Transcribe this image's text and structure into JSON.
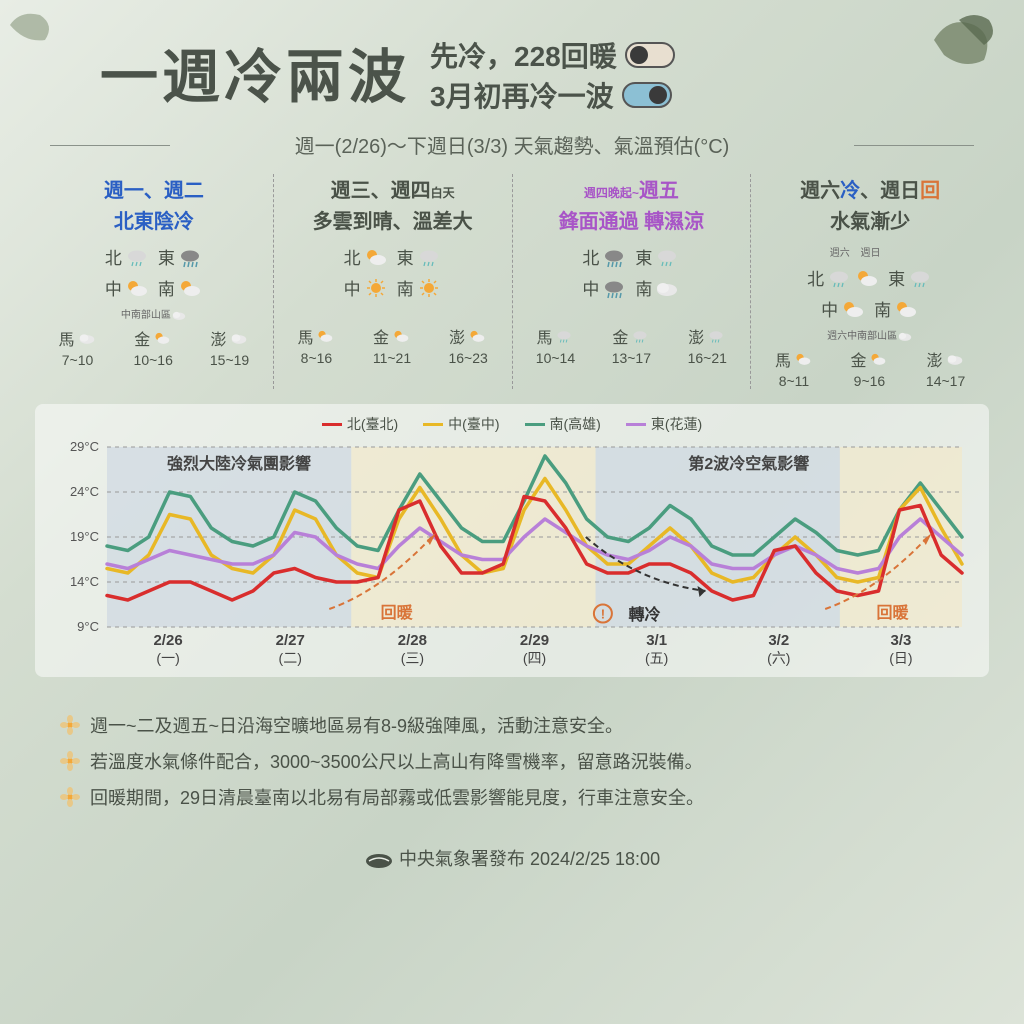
{
  "header": {
    "title_main": "一週冷兩波",
    "sub1": "先冷，228回暖",
    "sub2": "3月初再冷一波"
  },
  "subtitle": "週一(2/26)～下週日(3/3) 天氣趨勢、氣溫預估(°C)",
  "colors": {
    "blue": "#2a5fc4",
    "purple": "#a855c7",
    "orange": "#d97438",
    "dark": "#4a5248",
    "red": "#d92d2d",
    "yellow": "#e8b826",
    "green": "#4a9d7f",
    "violet": "#b880d8"
  },
  "periods": [
    {
      "title_html": "週一、週二",
      "title_color": "#2a5fc4",
      "subtitle": "北東陰冷",
      "subtitle_color": "#2a5fc4",
      "regions": [
        {
          "label": "北",
          "icon": "rain"
        },
        {
          "label": "東",
          "icon": "heavyrain"
        },
        {
          "label": "中",
          "icon": "partsun"
        },
        {
          "label": "南",
          "icon": "partsun"
        }
      ],
      "note": "中南部山區",
      "note_icon": "cloud",
      "islands": [
        {
          "name": "馬",
          "icon": "cloud",
          "temp": "7~10"
        },
        {
          "name": "金",
          "icon": "partsun",
          "temp": "10~16"
        },
        {
          "name": "澎",
          "icon": "cloud",
          "temp": "15~19"
        }
      ]
    },
    {
      "title_html": "週三、週四",
      "title_suffix": "白天",
      "title_color": "#4a5248",
      "subtitle": "多雲到晴、溫差大",
      "subtitle_color": "#4a5248",
      "regions": [
        {
          "label": "北",
          "icon": "partsun"
        },
        {
          "label": "東",
          "icon": "rain"
        },
        {
          "label": "中",
          "icon": "sun"
        },
        {
          "label": "南",
          "icon": "sun"
        }
      ],
      "islands": [
        {
          "name": "馬",
          "icon": "partsun",
          "temp": "8~16"
        },
        {
          "name": "金",
          "icon": "partsun",
          "temp": "11~21"
        },
        {
          "name": "澎",
          "icon": "partsun",
          "temp": "16~23"
        }
      ]
    },
    {
      "title_prefix": "週四晚起~",
      "title_html": "週五",
      "title_color": "#a855c7",
      "subtitle": "鋒面通過 轉濕涼",
      "subtitle_color": "#a855c7",
      "regions": [
        {
          "label": "北",
          "icon": "heavyrain"
        },
        {
          "label": "東",
          "icon": "rain"
        },
        {
          "label": "中",
          "icon": "heavyrain"
        },
        {
          "label": "南",
          "icon": "cloud"
        }
      ],
      "islands": [
        {
          "name": "馬",
          "icon": "rain",
          "temp": "10~14"
        },
        {
          "name": "金",
          "icon": "rain",
          "temp": "13~17"
        },
        {
          "name": "澎",
          "icon": "rain",
          "temp": "16~21"
        }
      ]
    },
    {
      "title_parts": [
        {
          "text": "週六",
          "color": "#4a5248"
        },
        {
          "text": "冷",
          "color": "#2a5fc4"
        },
        {
          "text": "、週日",
          "color": "#4a5248"
        },
        {
          "text": "回",
          "color": "#d97438"
        }
      ],
      "subtitle": "水氣漸少",
      "subtitle_color": "#4a5248",
      "label_sat": "週六",
      "label_sun": "週日",
      "regions": [
        {
          "label": "北",
          "icon": "rain",
          "icon2": "partsun"
        },
        {
          "label": "東",
          "icon": "rain"
        },
        {
          "label": "中",
          "icon": "partsun"
        },
        {
          "label": "南",
          "icon": "partsun"
        }
      ],
      "note": "週六中南部山區",
      "note_icon": "cloud",
      "islands": [
        {
          "name": "馬",
          "icon": "partsun",
          "temp": "8~11"
        },
        {
          "name": "金",
          "icon": "partsun",
          "temp": "9~16"
        },
        {
          "name": "澎",
          "icon": "cloud",
          "temp": "14~17"
        }
      ]
    }
  ],
  "chart": {
    "legend": [
      {
        "label": "北(臺北)",
        "color": "#d92d2d"
      },
      {
        "label": "中(臺中)",
        "color": "#e8b826"
      },
      {
        "label": "南(高雄)",
        "color": "#4a9d7f"
      },
      {
        "label": "東(花蓮)",
        "color": "#b880d8"
      }
    ],
    "y_min": 9,
    "y_max": 29,
    "y_ticks": [
      9,
      14,
      19,
      24,
      29
    ],
    "y_unit": "°C",
    "x_labels": [
      {
        "date": "2/26",
        "day": "(一)"
      },
      {
        "date": "2/27",
        "day": "(二)"
      },
      {
        "date": "2/28",
        "day": "(三)"
      },
      {
        "date": "2/29",
        "day": "(四)"
      },
      {
        "date": "3/1",
        "day": "(五)"
      },
      {
        "date": "3/2",
        "day": "(六)"
      },
      {
        "date": "3/3",
        "day": "(日)"
      }
    ],
    "bg_bands": [
      {
        "start": 0,
        "end": 2,
        "color": "#c3cfe0",
        "opacity": 0.5
      },
      {
        "start": 2,
        "end": 4,
        "color": "#f5e8c0",
        "opacity": 0.5
      },
      {
        "start": 4,
        "end": 6,
        "color": "#c3cfe0",
        "opacity": 0.5
      },
      {
        "start": 6,
        "end": 7,
        "color": "#f5e8c0",
        "opacity": 0.5
      }
    ],
    "series": {
      "north": [
        12.5,
        12,
        13,
        14,
        14,
        13,
        12,
        13,
        15,
        15.5,
        14.5,
        14,
        14,
        14.5,
        22,
        23,
        18,
        15,
        15,
        16,
        23.5,
        23,
        20,
        16,
        15,
        15,
        16,
        16,
        15,
        13,
        12,
        12.5,
        17.5,
        18,
        15,
        13,
        12.5,
        13,
        22,
        22.5,
        17,
        15
      ],
      "central": [
        15.5,
        15,
        17,
        21.5,
        21,
        17,
        15.5,
        15,
        17,
        22,
        21,
        17,
        15,
        14.5,
        21,
        24.5,
        21,
        17,
        15,
        15.5,
        22,
        25.5,
        22,
        18,
        16,
        16,
        18,
        20,
        18,
        15,
        14,
        14.5,
        17,
        19,
        17,
        14.5,
        14,
        14.5,
        22,
        24.5,
        20,
        16
      ],
      "south": [
        18,
        17.5,
        19,
        24,
        23.5,
        20,
        18.5,
        18,
        19,
        24,
        23,
        20,
        18,
        17.5,
        22,
        26,
        23,
        20,
        18.5,
        18.5,
        23,
        28,
        25,
        21,
        19,
        18.5,
        20,
        22.5,
        21,
        18,
        17,
        17,
        19,
        21,
        19.5,
        17.5,
        17,
        17.5,
        22,
        25,
        22,
        19
      ],
      "east": [
        16,
        15.5,
        16.5,
        17.5,
        17,
        16.5,
        16,
        16,
        17,
        19.5,
        19,
        17,
        16,
        15.5,
        18,
        20,
        18.5,
        17,
        16.5,
        16.5,
        19,
        21,
        19.5,
        18,
        17,
        16.5,
        17.5,
        19,
        18,
        16,
        15.5,
        15.5,
        17,
        18,
        17,
        15.5,
        15,
        15.5,
        19,
        21,
        19,
        17
      ]
    },
    "annotations": {
      "note1": "強烈大陸冷氣團影響",
      "note2": "第2波冷空氣影響",
      "warm1": "回暖",
      "cold": "轉冷",
      "warm2": "回暖"
    },
    "line_width": 3.5
  },
  "bullets": [
    "週一~二及週五~日沿海空曠地區易有8-9級強陣風，活動注意安全。",
    "若溫度水氣條件配合，3000~3500公尺以上高山有降雪機率，留意路況裝備。",
    "回暖期間，29日清晨臺南以北易有局部霧或低雲影響能見度，行車注意安全。"
  ],
  "footer": {
    "publisher": "中央氣象署發布",
    "datetime": "2024/2/25 18:00"
  }
}
